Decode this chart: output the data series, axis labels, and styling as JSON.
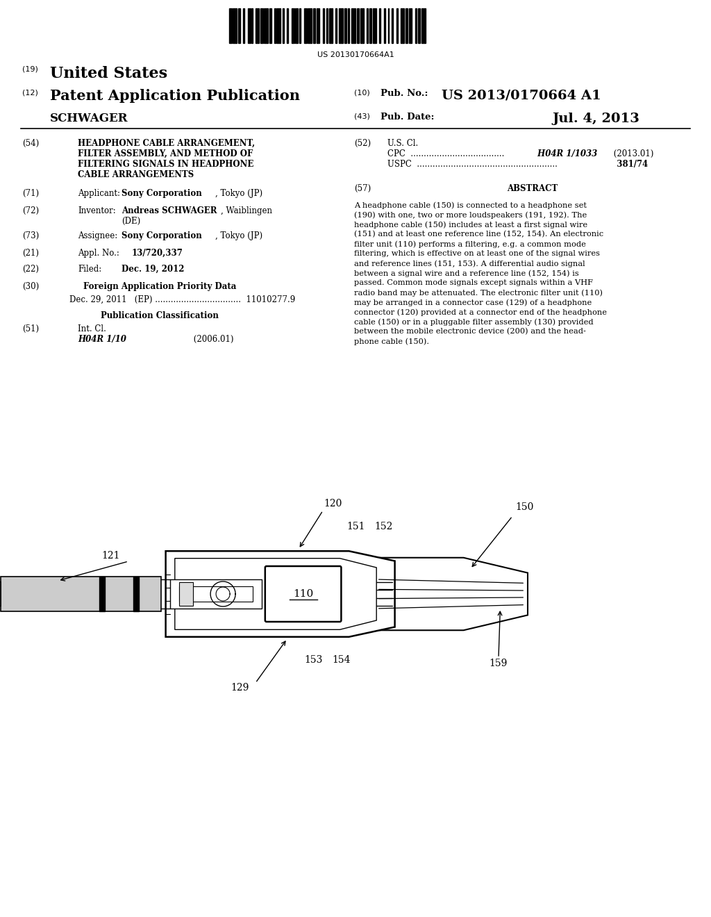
{
  "bg_color": "#ffffff",
  "barcode_text": "US 20130170664A1",
  "abstract_lines": [
    "A headphone cable (150) is connected to a headphone set",
    "(190) with one, two or more loudspeakers (191, 192). The",
    "headphone cable (150) includes at least a first signal wire",
    "(151) and at least one reference line (152, 154). An electronic",
    "filter unit (110) performs a filtering, e.g. a common mode",
    "filtering, which is effective on at least one of the signal wires",
    "and reference lines (151, 153). A differential audio signal",
    "between a signal wire and a reference line (152, 154) is",
    "passed. Common mode signals except signals within a VHF",
    "radio band may be attenuated. The electronic filter unit (110)",
    "may be arranged in a connector case (129) of a headphone",
    "connector (120) provided at a connector end of the headphone",
    "cable (150) or in a pluggable filter assembly (130) provided",
    "between the mobile electronic device (200) and the head-",
    "phone cable (150)."
  ]
}
